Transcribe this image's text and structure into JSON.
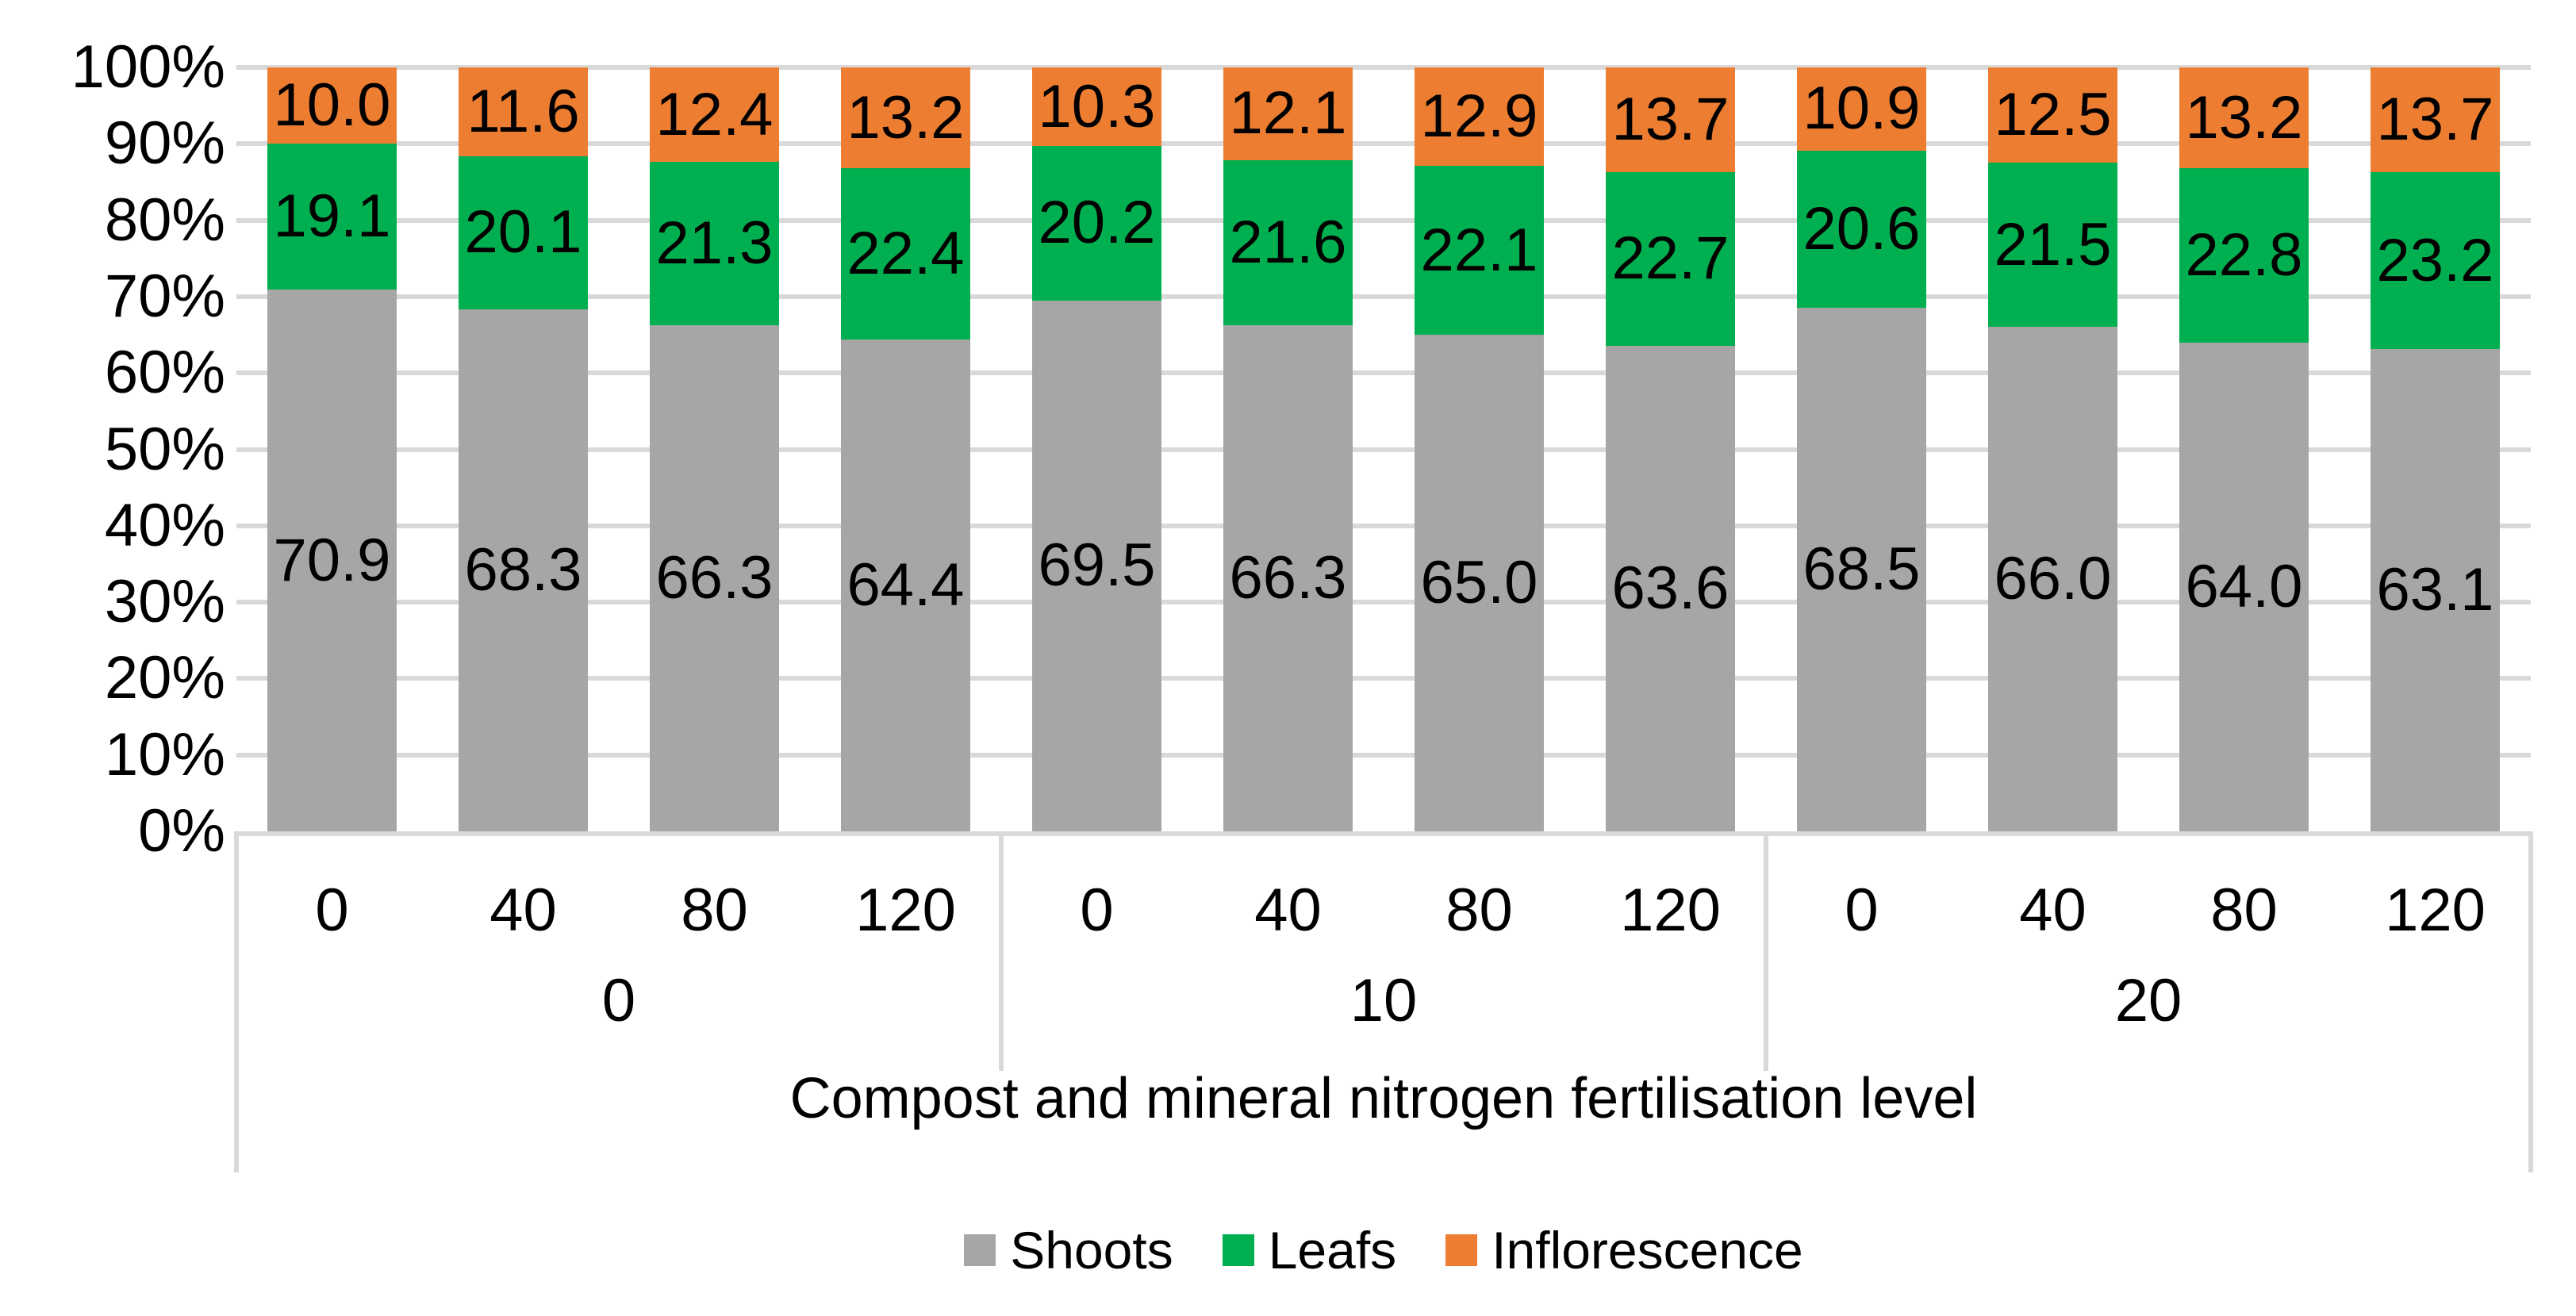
{
  "chart_data": {
    "type": "bar",
    "variant": "stacked-100-percent",
    "title": "",
    "xlabel": "Compost and mineral nitrogen fertilisation level",
    "ylabel": "",
    "y_axis": {
      "min": 0,
      "max": 100,
      "step": 10,
      "tick_labels": [
        "0%",
        "10%",
        "20%",
        "30%",
        "40%",
        "50%",
        "60%",
        "70%",
        "80%",
        "90%",
        "100%"
      ],
      "gridlines": true,
      "gridline_color": "#D9D9D9",
      "axis_line_color": "#D9D9D9"
    },
    "groups": [
      {
        "label": "0",
        "categories": [
          "0",
          "40",
          "80",
          "120"
        ]
      },
      {
        "label": "10",
        "categories": [
          "0",
          "40",
          "80",
          "120"
        ]
      },
      {
        "label": "20",
        "categories": [
          "0",
          "40",
          "80",
          "120"
        ]
      }
    ],
    "series": [
      {
        "name": "Shoots",
        "color": "#A6A6A6",
        "values": [
          [
            70.9,
            68.3,
            66.3,
            64.4
          ],
          [
            69.5,
            66.3,
            65.0,
            63.6
          ],
          [
            68.5,
            66.0,
            64.0,
            63.1
          ]
        ]
      },
      {
        "name": "Leafs",
        "color": "#00B050",
        "values": [
          [
            19.1,
            20.1,
            21.3,
            22.4
          ],
          [
            20.2,
            21.6,
            22.1,
            22.7
          ],
          [
            20.6,
            21.5,
            22.8,
            23.2
          ]
        ]
      },
      {
        "name": "Inflorescence",
        "color": "#ED7D31",
        "values": [
          [
            10.0,
            11.6,
            12.4,
            13.2
          ],
          [
            10.3,
            12.1,
            12.9,
            13.7
          ],
          [
            10.9,
            12.5,
            13.2,
            13.7
          ]
        ]
      }
    ],
    "data_label_format": "0.0",
    "data_label_color": "#000000",
    "legend": {
      "position": "bottom",
      "items": [
        "Shoots",
        "Leafs",
        "Inflorescence"
      ]
    }
  }
}
